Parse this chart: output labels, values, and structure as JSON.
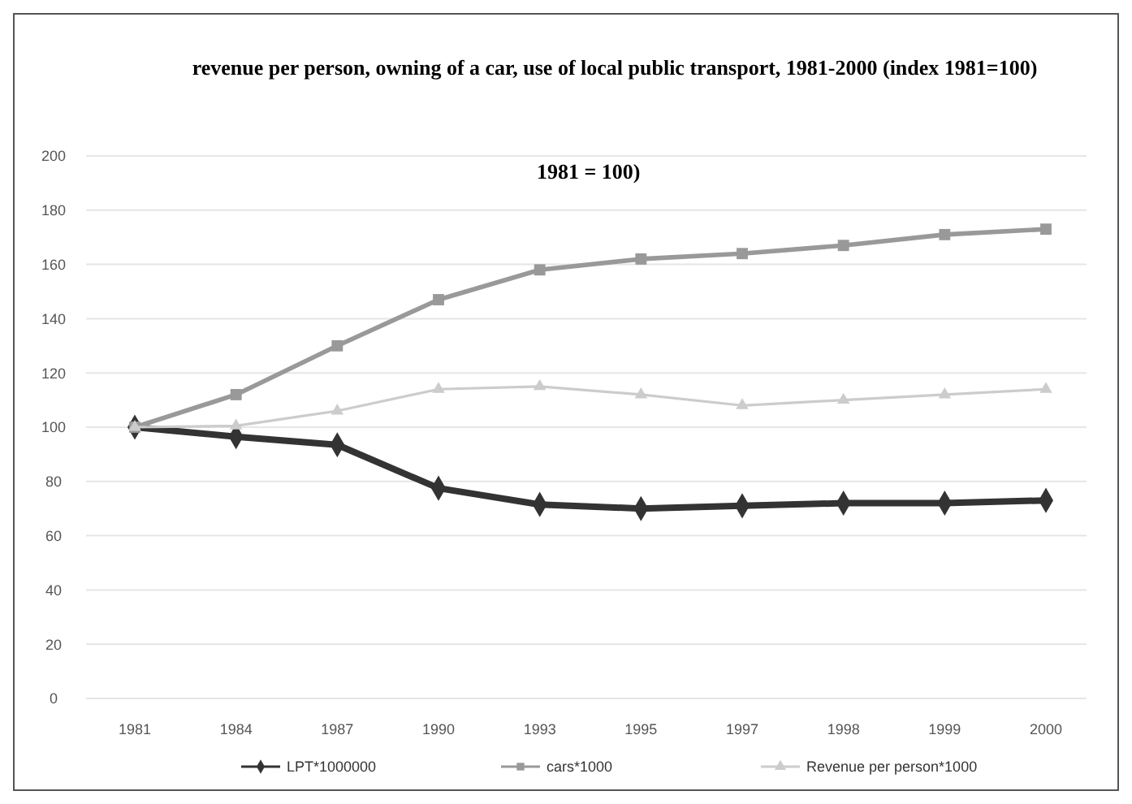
{
  "chart_data": {
    "type": "line",
    "title": "revenue per person, owning of a car, use of local public transport, 1981-2000 (index 1981=100)",
    "subtitle": "1981 = 100)",
    "categories": [
      "1981",
      "1984",
      "1987",
      "1990",
      "1993",
      "1995",
      "1997",
      "1998",
      "1999",
      "2000"
    ],
    "series": [
      {
        "name": "LPT*1000000",
        "color": "#333333",
        "marker": "diamond",
        "values": [
          100,
          96.5,
          93.5,
          77.5,
          71.5,
          70,
          71,
          72,
          72,
          73
        ]
      },
      {
        "name": "cars*1000",
        "color": "#999999",
        "marker": "square",
        "values": [
          100,
          112,
          130,
          147,
          158,
          162,
          164,
          167,
          171,
          173
        ]
      },
      {
        "name": "Revenue per person*1000",
        "color": "#cccccc",
        "marker": "triangle",
        "values": [
          100,
          100.5,
          106,
          114,
          115,
          112,
          108,
          110,
          112,
          114
        ]
      }
    ],
    "ylim": [
      0,
      200
    ],
    "yticks": [
      0,
      20,
      40,
      60,
      80,
      100,
      120,
      140,
      160,
      180,
      200
    ],
    "grid": "y",
    "legend": "bottom",
    "line_style": "solid"
  }
}
